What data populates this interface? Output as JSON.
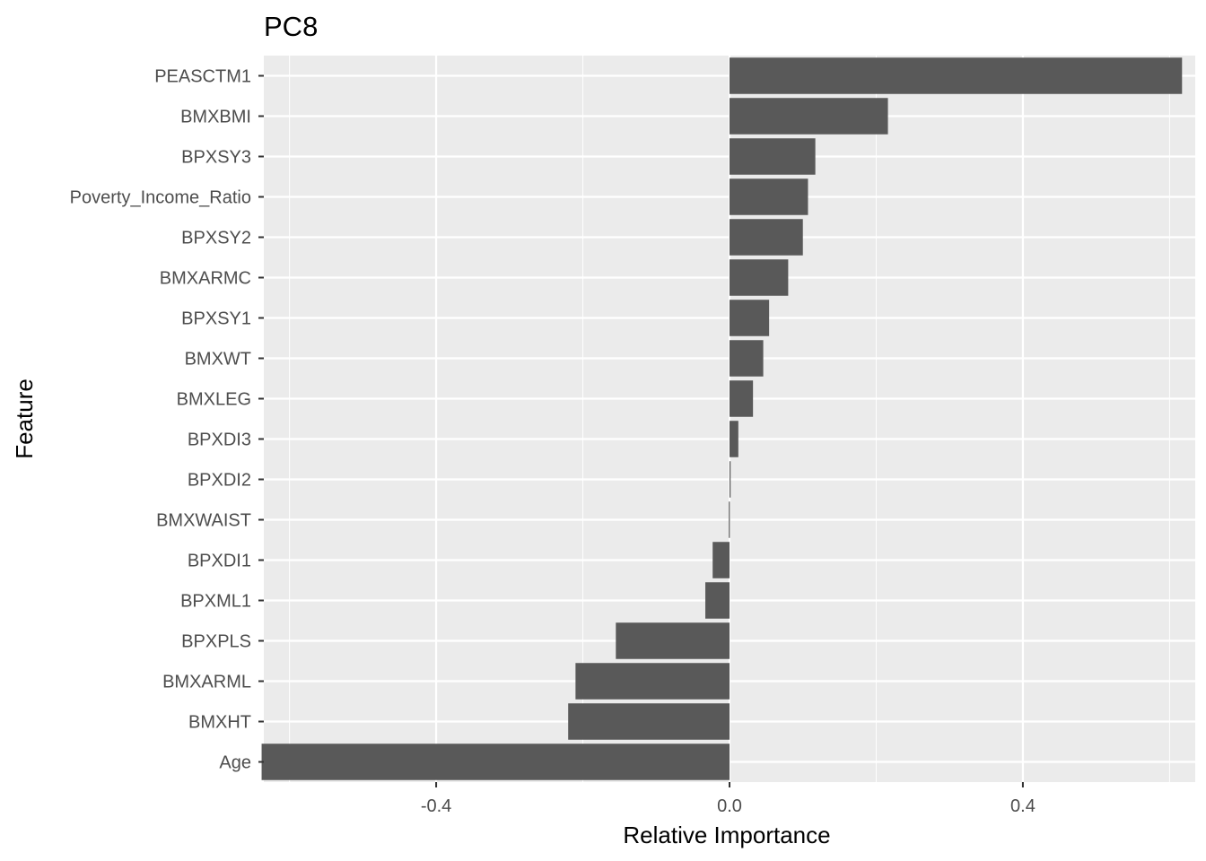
{
  "chart_data": {
    "type": "bar",
    "orientation": "horizontal",
    "title": "PC8",
    "xlabel": "Relative Importance",
    "ylabel": "Feature",
    "xlim": [
      -0.635,
      0.635
    ],
    "xticks": [
      -0.4,
      0.0,
      0.4
    ],
    "xtick_labels": [
      "-0.4",
      "0.0",
      "0.4"
    ],
    "grid": true,
    "categories": [
      "PEASCTM1",
      "BMXBMI",
      "BPXSY3",
      "Poverty_Income_Ratio",
      "BPXSY2",
      "BMXARMC",
      "BPXSY1",
      "BMXWT",
      "BMXLEG",
      "BPXDI3",
      "BPXDI2",
      "BMXWAIST",
      "BPXDI1",
      "BPXML1",
      "BPXPLS",
      "BMXARML",
      "BMXHT",
      "Age"
    ],
    "values": [
      0.617,
      0.216,
      0.117,
      0.107,
      0.1,
      0.08,
      0.054,
      0.046,
      0.032,
      0.012,
      0.001,
      -0.001,
      -0.023,
      -0.033,
      -0.155,
      -0.21,
      -0.22,
      -0.638
    ],
    "colors": {
      "bar": "#595959",
      "panel": "#ebebeb",
      "grid_major": "#ffffff",
      "tick": "#333333"
    }
  }
}
